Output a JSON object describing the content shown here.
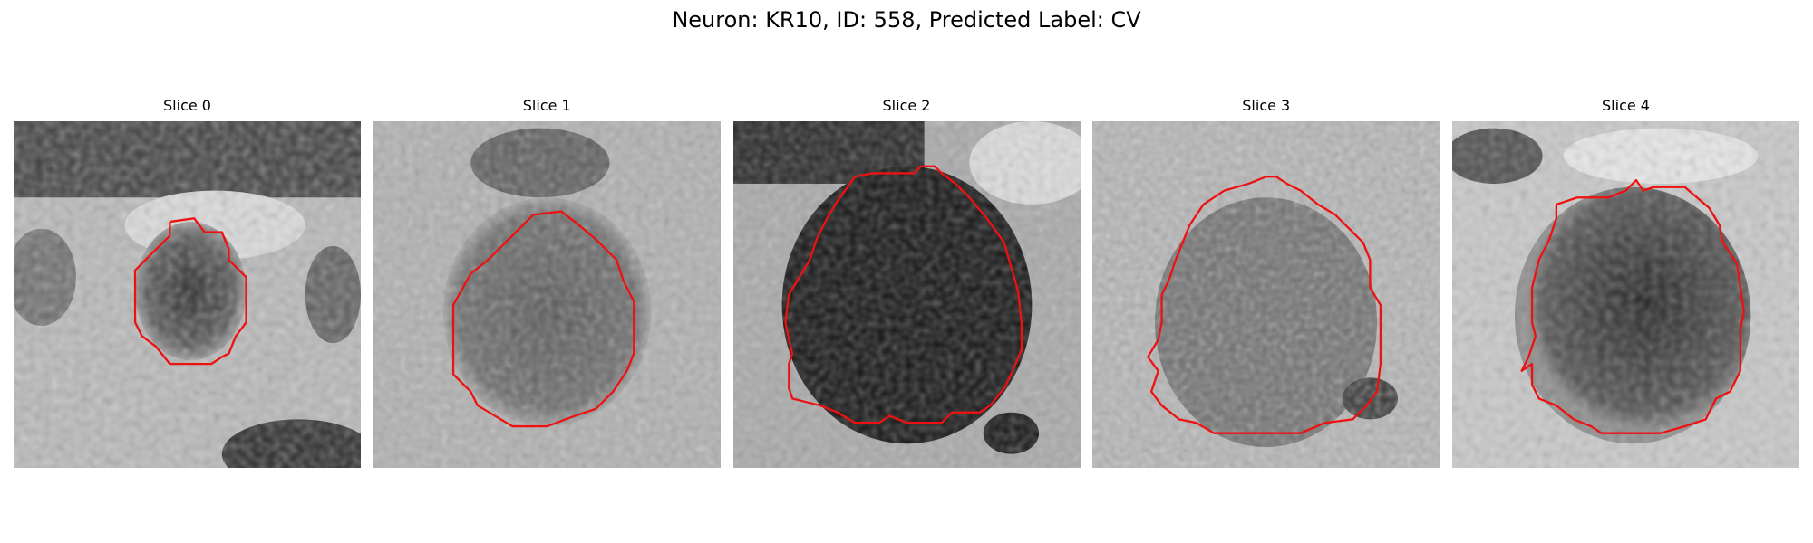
{
  "title": "Neuron: KR10, ID: 558, Predicted Label: CV",
  "slices": [
    {
      "label": "Slice 0"
    },
    {
      "label": "Slice 1"
    },
    {
      "label": "Slice 2"
    },
    {
      "label": "Slice 3"
    },
    {
      "label": "Slice 4"
    }
  ],
  "contour_color": "#ee1111"
}
